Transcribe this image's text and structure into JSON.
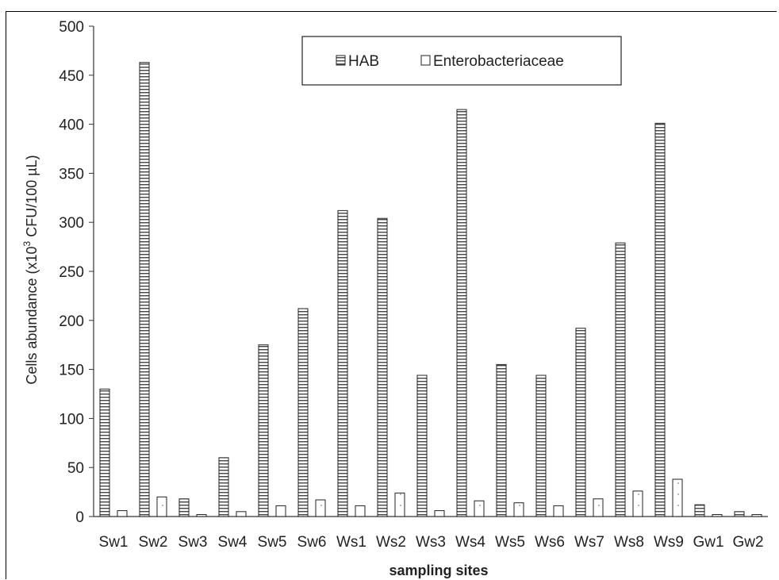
{
  "chart_data": {
    "type": "bar",
    "categories": [
      "Sw1",
      "Sw2",
      "Sw3",
      "Sw4",
      "Sw5",
      "Sw6",
      "Ws1",
      "Ws2",
      "Ws3",
      "Ws4",
      "Ws5",
      "Ws6",
      "Ws7",
      "Ws8",
      "Ws9",
      "Gw1",
      "Gw2"
    ],
    "series": [
      {
        "name": "HAB",
        "values": [
          130,
          463,
          18,
          60,
          175,
          212,
          312,
          304,
          144,
          415,
          155,
          144,
          192,
          279,
          401,
          12,
          5
        ]
      },
      {
        "name": "Enterobacteriaceae",
        "values": [
          6,
          20,
          2,
          5,
          11,
          17,
          11,
          24,
          6,
          16,
          14,
          11,
          18,
          26,
          38,
          2,
          2
        ]
      }
    ],
    "xlabel": "sampling sites",
    "ylabel_pre": "Cells abundance  (x10",
    "ylabel_sup": "3",
    "ylabel_post": " CFU/100  µL)",
    "ylim": [
      0,
      500
    ],
    "yticks": [
      0,
      50,
      100,
      150,
      200,
      250,
      300,
      350,
      400,
      450,
      500
    ],
    "grid": false,
    "legend_position": "top-center",
    "colors": {
      "hab_fill": "#ffffff",
      "hab_stripe": "#444444",
      "entero_fill": "#ffffff",
      "outline": "#222222"
    }
  }
}
